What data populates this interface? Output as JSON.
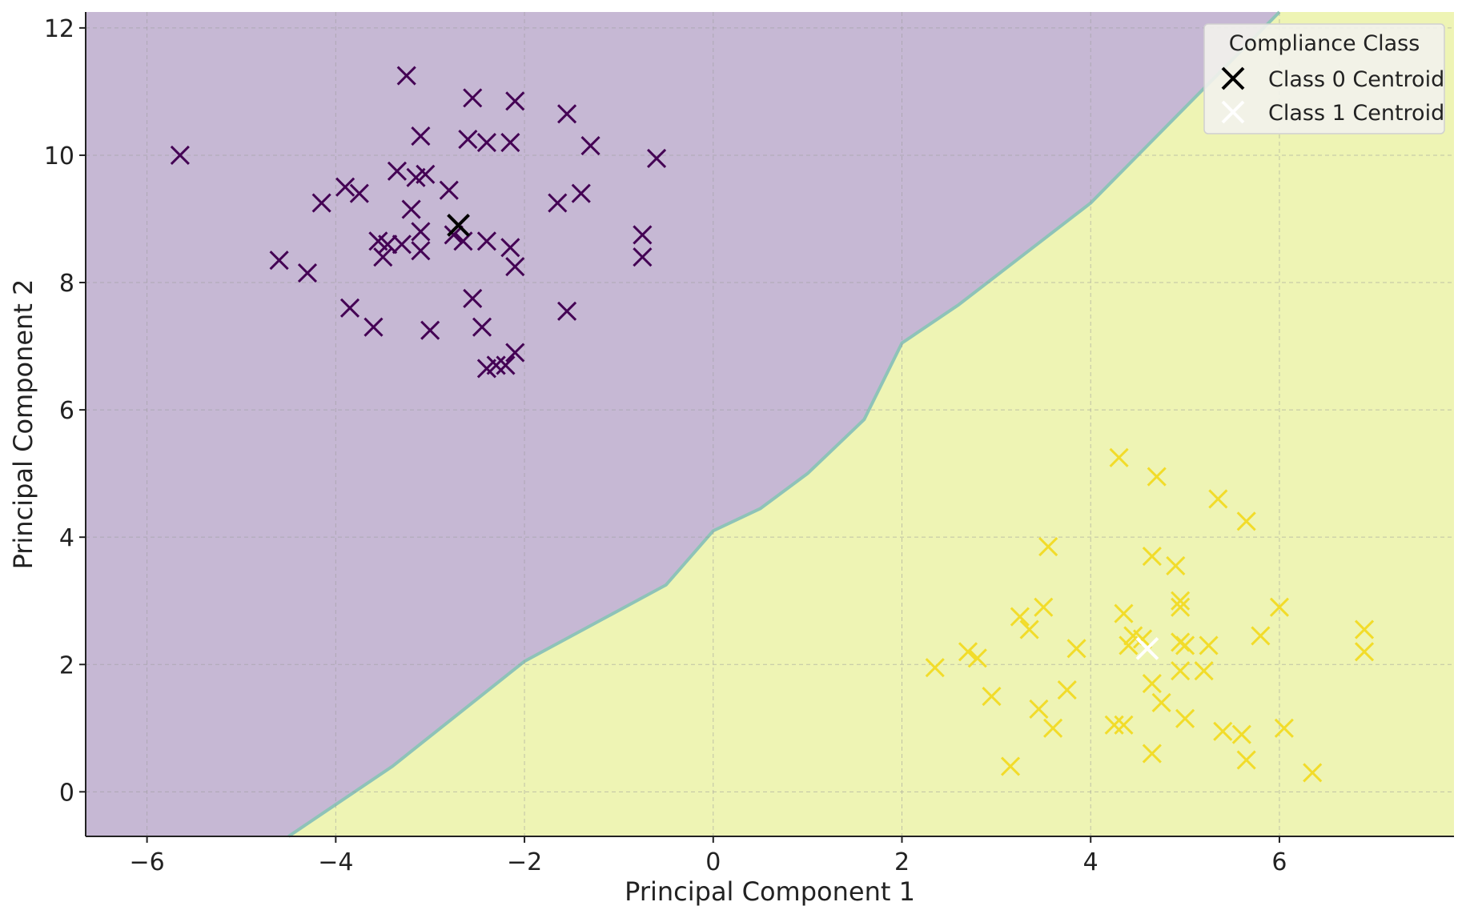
{
  "chart_data": {
    "type": "scatter",
    "title": "",
    "xlabel": "Principal Component 1",
    "ylabel": "Principal Component 2",
    "xlim": [
      -6.65,
      7.85
    ],
    "ylim": [
      -0.7,
      12.25
    ],
    "xticks": [
      -6,
      -4,
      -2,
      0,
      2,
      4,
      6
    ],
    "yticks": [
      0,
      2,
      4,
      6,
      8,
      10,
      12
    ],
    "grid": true,
    "marker": "x",
    "decision_regions": {
      "class_0_color": "#c6b8d4",
      "class_1_color": "#eef4b4",
      "boundary_color": "#8ec3b8",
      "boundary": [
        [
          -4.5,
          -0.7
        ],
        [
          -3.4,
          0.4
        ],
        [
          -2.0,
          2.05
        ],
        [
          -0.5,
          3.25
        ],
        [
          0.0,
          4.1
        ],
        [
          0.5,
          4.45
        ],
        [
          1.0,
          5.0
        ],
        [
          1.6,
          5.85
        ],
        [
          2.0,
          7.05
        ],
        [
          2.6,
          7.65
        ],
        [
          4.0,
          9.25
        ],
        [
          5.0,
          10.75
        ],
        [
          6.0,
          12.25
        ]
      ]
    },
    "series": [
      {
        "class": 0,
        "color": "#440154",
        "points": [
          [
            -5.65,
            10.0
          ],
          [
            -3.25,
            11.25
          ],
          [
            -2.55,
            10.9
          ],
          [
            -2.1,
            10.85
          ],
          [
            -1.55,
            10.65
          ],
          [
            -3.1,
            10.3
          ],
          [
            -2.6,
            10.25
          ],
          [
            -2.4,
            10.2
          ],
          [
            -2.15,
            10.2
          ],
          [
            -1.3,
            10.15
          ],
          [
            -0.6,
            9.95
          ],
          [
            -3.35,
            9.75
          ],
          [
            -3.15,
            9.65
          ],
          [
            -3.05,
            9.7
          ],
          [
            -3.9,
            9.5
          ],
          [
            -3.75,
            9.4
          ],
          [
            -2.8,
            9.45
          ],
          [
            -1.4,
            9.4
          ],
          [
            -4.15,
            9.25
          ],
          [
            -1.65,
            9.25
          ],
          [
            -3.2,
            9.15
          ],
          [
            -3.1,
            8.8
          ],
          [
            -2.75,
            8.75
          ],
          [
            -2.65,
            8.65
          ],
          [
            -2.4,
            8.65
          ],
          [
            -0.75,
            8.75
          ],
          [
            -3.55,
            8.65
          ],
          [
            -3.45,
            8.6
          ],
          [
            -3.3,
            8.6
          ],
          [
            -3.1,
            8.5
          ],
          [
            -2.15,
            8.55
          ],
          [
            -3.5,
            8.4
          ],
          [
            -0.75,
            8.4
          ],
          [
            -4.6,
            8.35
          ],
          [
            -2.1,
            8.25
          ],
          [
            -4.3,
            8.15
          ],
          [
            -2.55,
            7.75
          ],
          [
            -3.85,
            7.6
          ],
          [
            -1.55,
            7.55
          ],
          [
            -3.6,
            7.3
          ],
          [
            -2.45,
            7.3
          ],
          [
            -3.0,
            7.25
          ],
          [
            -2.1,
            6.9
          ],
          [
            -2.3,
            6.7
          ],
          [
            -2.2,
            6.7
          ],
          [
            -2.4,
            6.65
          ]
        ]
      },
      {
        "class": 1,
        "color": "#f2dc2a",
        "points": [
          [
            4.3,
            5.25
          ],
          [
            4.7,
            4.95
          ],
          [
            5.35,
            4.6
          ],
          [
            5.65,
            4.25
          ],
          [
            3.55,
            3.85
          ],
          [
            4.65,
            3.7
          ],
          [
            4.9,
            3.55
          ],
          [
            4.95,
            3.0
          ],
          [
            4.95,
            2.9
          ],
          [
            3.5,
            2.9
          ],
          [
            6.0,
            2.9
          ],
          [
            4.35,
            2.8
          ],
          [
            3.25,
            2.75
          ],
          [
            3.35,
            2.55
          ],
          [
            6.9,
            2.55
          ],
          [
            4.45,
            2.45
          ],
          [
            4.55,
            2.4
          ],
          [
            4.95,
            2.35
          ],
          [
            5.8,
            2.45
          ],
          [
            4.4,
            2.3
          ],
          [
            5.0,
            2.3
          ],
          [
            5.25,
            2.3
          ],
          [
            3.85,
            2.25
          ],
          [
            2.7,
            2.2
          ],
          [
            6.9,
            2.2
          ],
          [
            2.8,
            2.1
          ],
          [
            2.35,
            1.95
          ],
          [
            4.95,
            1.9
          ],
          [
            5.2,
            1.9
          ],
          [
            4.65,
            1.7
          ],
          [
            3.75,
            1.6
          ],
          [
            2.95,
            1.5
          ],
          [
            4.75,
            1.4
          ],
          [
            3.45,
            1.3
          ],
          [
            5.0,
            1.15
          ],
          [
            4.25,
            1.05
          ],
          [
            4.35,
            1.05
          ],
          [
            3.6,
            1.0
          ],
          [
            6.05,
            1.0
          ],
          [
            5.4,
            0.95
          ],
          [
            5.6,
            0.9
          ],
          [
            4.65,
            0.6
          ],
          [
            5.65,
            0.5
          ],
          [
            3.15,
            0.4
          ],
          [
            6.35,
            0.3
          ]
        ]
      }
    ],
    "centroids": [
      {
        "name": "Class 0 Centroid",
        "x": -2.7,
        "y": 8.9,
        "color": "#000000"
      },
      {
        "name": "Class 1 Centroid",
        "x": 4.6,
        "y": 2.25,
        "color": "#ffffff"
      }
    ],
    "legend": {
      "title": "Compliance Class",
      "placement": "top-right",
      "entries": [
        "Class 0 Centroid",
        "Class 1 Centroid"
      ]
    }
  }
}
